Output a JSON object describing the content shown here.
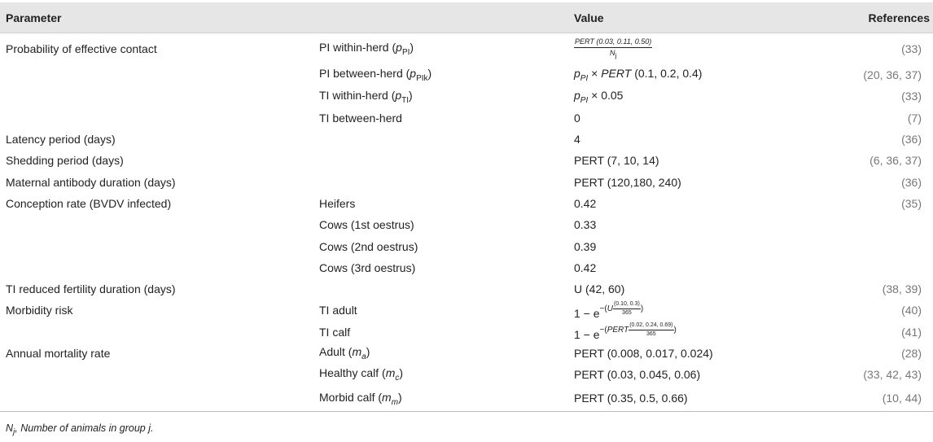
{
  "headers": {
    "parameter": "Parameter",
    "value": "Value",
    "references": "References"
  },
  "rows": [
    {
      "param": "Probability of effective contact",
      "sub_pre": "PI within-herd (",
      "sub_sym": "p",
      "sub_idx": "PI",
      "sub_post": ")",
      "val_num": "PERT (0.03, 0.11, 0.50)",
      "val_den_sym": "N",
      "val_den_idx": "j",
      "ref_o": "(",
      "refs": [
        "33"
      ],
      "ref_c": ")"
    },
    {
      "sub_pre": "PI between-herd (",
      "sub_sym": "p",
      "sub_idx": "PIk",
      "sub_post": ")",
      "val_sym": "p",
      "val_idx": "PI",
      "val_times": " × ",
      "val_fn": "PERT",
      "val_rest": " (0.1, 0.2, 0.4)",
      "ref_o": "(",
      "refs": [
        "20",
        "36",
        "37"
      ],
      "ref_c": ")"
    },
    {
      "sub_pre": "TI within-herd (",
      "sub_sym": "p",
      "sub_idx": "TI",
      "sub_post": ")",
      "val_sym": "p",
      "val_idx": "PI",
      "val_rest": " × 0.05",
      "ref_o": "(",
      "refs": [
        "33"
      ],
      "ref_c": ")"
    },
    {
      "sub": "TI between-herd",
      "value": "0",
      "ref_o": "(",
      "refs": [
        "7"
      ],
      "ref_c": ")"
    },
    {
      "param": "Latency period (days)",
      "value": "4",
      "ref_o": "(",
      "refs": [
        "36"
      ],
      "ref_c": ")"
    },
    {
      "param": "Shedding period (days)",
      "value": "PERT (7, 10, 14)",
      "ref_o": "(",
      "refs": [
        "6",
        "36",
        "37"
      ],
      "ref_c": ")"
    },
    {
      "param": "Maternal antibody duration (days)",
      "value": "PERT (120,180, 240)",
      "ref_o": "(",
      "refs": [
        "36"
      ],
      "ref_c": ")"
    },
    {
      "param": "Conception rate (BVDV infected)",
      "sub": "Heifers",
      "value": "0.42",
      "ref_o": "(",
      "refs": [
        "35"
      ],
      "ref_c": ")"
    },
    {
      "sub": "Cows (1st oestrus)",
      "value": "0.33"
    },
    {
      "sub": "Cows (2nd oestrus)",
      "value": "0.39"
    },
    {
      "sub": "Cows (3rd oestrus)",
      "value": "0.42"
    },
    {
      "param": "TI reduced fertility duration (days)",
      "value": "U (42, 60)",
      "ref_o": "(",
      "refs": [
        "38",
        "39"
      ],
      "ref_c": ")"
    },
    {
      "param": "Morbidity risk",
      "sub": "TI adult",
      "val_base": "1 − e",
      "val_exp_pre": "−(",
      "val_exp_fn": "U",
      "val_exp_num": "(0.10, 0.3)",
      "val_exp_den": "365",
      "val_exp_post": ")",
      "ref_o": "(",
      "refs": [
        "40"
      ],
      "ref_c": ")"
    },
    {
      "sub": "TI calf",
      "val_base": "1 − e",
      "val_exp_pre": "−(",
      "val_exp_fn": "PERT",
      "val_exp_num": "(0.02, 0.24, 0.69)",
      "val_exp_den": "365",
      "val_exp_post": ")",
      "ref_o": "(",
      "refs": [
        "41"
      ],
      "ref_c": ")"
    },
    {
      "param": "Annual mortality rate",
      "sub_pre": "Adult (",
      "sub_sym": "m",
      "sub_idx": "a",
      "sub_post": ")",
      "value": "PERT (0.008, 0.017, 0.024)",
      "ref_o": "(",
      "refs": [
        "28"
      ],
      "ref_c": ")"
    },
    {
      "sub_pre": "Healthy calf (",
      "sub_sym": "m",
      "sub_idx": "c",
      "sub_post": ")",
      "value": "PERT (0.03, 0.045, 0.06)",
      "ref_o": "(",
      "refs": [
        "33",
        "42",
        "43"
      ],
      "ref_c": ")"
    },
    {
      "sub_pre": "Morbid calf (",
      "sub_sym": "m",
      "sub_idx": "m",
      "sub_post": ")",
      "value": "PERT (0.35, 0.5, 0.66)",
      "ref_o": "(",
      "refs": [
        "10",
        "44"
      ],
      "ref_c": ")"
    }
  ],
  "footnote": {
    "sym": "N",
    "idx": "j",
    "text": ", Number of animals in group j."
  }
}
